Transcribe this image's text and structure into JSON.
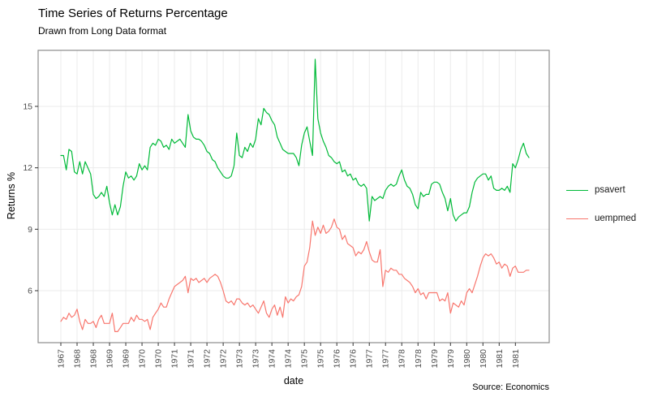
{
  "header": {
    "title": "Time Series of Returns Percentage",
    "subtitle": "Drawn from Long Data format"
  },
  "caption": "Source: Economics",
  "axes": {
    "x_title": "date",
    "y_title": "Returns %",
    "y_ticks": [
      6,
      9,
      12,
      15
    ]
  },
  "legend": {
    "items": [
      {
        "label": "psavert",
        "color": "#00BA38"
      },
      {
        "label": "uempmed",
        "color": "#F8766D"
      }
    ]
  },
  "colors": {
    "grid": "#ebebeb",
    "panel_border": "#8c8c8c",
    "tick_mark": "#333333",
    "tick_text": "#4d4d4d",
    "panel_bg": "#ffffff"
  },
  "chart_data": {
    "type": "line",
    "title": "Time Series of Returns Percentage",
    "subtitle": "Drawn from Long Data format",
    "xlabel": "date",
    "ylabel": "Returns %",
    "x_start": "1967-07",
    "x_end": "1981-12",
    "interval": "monthly",
    "ylim": [
      3.5,
      17.8
    ],
    "y_ticks": [
      6,
      9,
      12,
      15
    ],
    "x_tick_every_months": 6,
    "x_tick_labels": [
      "1967",
      "1968",
      "1968",
      "1969",
      "1969",
      "1970",
      "1970",
      "1971",
      "1971",
      "1972",
      "1972",
      "1973",
      "1973",
      "1974",
      "1974",
      "1975",
      "1975",
      "1976",
      "1976",
      "1977",
      "1977",
      "1978",
      "1978",
      "1979",
      "1979",
      "1980",
      "1980",
      "1981",
      "1981"
    ],
    "grid": "major-only",
    "legend_position": "right",
    "series": [
      {
        "name": "psavert",
        "color": "#00BA38",
        "values": [
          12.6,
          12.6,
          11.9,
          12.9,
          12.8,
          11.8,
          11.7,
          12.3,
          11.7,
          12.3,
          12.0,
          11.7,
          10.7,
          10.5,
          10.6,
          10.8,
          10.6,
          11.1,
          10.3,
          9.7,
          10.2,
          9.7,
          10.1,
          11.1,
          11.8,
          11.5,
          11.6,
          11.4,
          11.6,
          12.2,
          11.9,
          12.1,
          11.9,
          13.0,
          13.2,
          13.1,
          13.4,
          13.3,
          13.0,
          13.1,
          12.9,
          13.4,
          13.2,
          13.3,
          13.4,
          13.2,
          13.0,
          14.6,
          13.8,
          13.5,
          13.4,
          13.4,
          13.3,
          13.1,
          12.8,
          12.7,
          12.4,
          12.3,
          12.0,
          11.8,
          11.6,
          11.5,
          11.5,
          11.6,
          12.1,
          13.7,
          12.6,
          12.5,
          13.0,
          12.8,
          13.2,
          13.0,
          13.4,
          14.4,
          14.1,
          14.9,
          14.7,
          14.6,
          14.3,
          14.1,
          13.5,
          13.2,
          12.9,
          12.8,
          12.7,
          12.7,
          12.7,
          12.5,
          12.1,
          13.1,
          13.7,
          14.0,
          13.3,
          12.6,
          17.3,
          14.4,
          13.7,
          13.3,
          13.0,
          12.6,
          12.5,
          12.3,
          12.2,
          12.3,
          11.8,
          11.9,
          11.6,
          11.7,
          11.4,
          11.5,
          11.2,
          11.1,
          11.2,
          11.0,
          9.4,
          10.6,
          10.4,
          10.5,
          10.6,
          10.5,
          10.9,
          11.1,
          11.2,
          11.1,
          11.2,
          11.6,
          11.9,
          11.4,
          11.1,
          11.0,
          10.7,
          10.2,
          10.0,
          10.8,
          10.6,
          10.7,
          10.7,
          11.2,
          11.3,
          11.3,
          11.2,
          10.8,
          10.5,
          9.9,
          10.5,
          9.7,
          9.4,
          9.6,
          9.7,
          9.8,
          9.8,
          10.1,
          10.8,
          11.3,
          11.5,
          11.6,
          11.7,
          11.7,
          11.4,
          11.6,
          11.0,
          10.9,
          10.9,
          11.0,
          10.9,
          11.1,
          10.8,
          12.2,
          12.0,
          12.4,
          12.9,
          13.2,
          12.7,
          12.5
        ]
      },
      {
        "name": "uempmed",
        "color": "#F8766D",
        "values": [
          4.5,
          4.7,
          4.6,
          4.9,
          4.7,
          4.8,
          5.1,
          4.5,
          4.1,
          4.6,
          4.4,
          4.4,
          4.5,
          4.2,
          4.6,
          4.8,
          4.4,
          4.4,
          4.4,
          4.9,
          4.0,
          4.0,
          4.2,
          4.4,
          4.4,
          4.4,
          4.7,
          4.5,
          4.8,
          4.6,
          4.6,
          4.5,
          4.6,
          4.1,
          4.7,
          4.9,
          5.1,
          5.4,
          5.2,
          5.2,
          5.6,
          5.9,
          6.2,
          6.3,
          6.4,
          6.5,
          6.7,
          5.9,
          6.6,
          6.5,
          6.6,
          6.4,
          6.5,
          6.6,
          6.4,
          6.6,
          6.7,
          6.8,
          6.7,
          6.4,
          6.0,
          5.5,
          5.4,
          5.5,
          5.3,
          5.6,
          5.6,
          5.4,
          5.3,
          5.4,
          5.2,
          5.3,
          5.1,
          4.9,
          5.2,
          5.5,
          4.9,
          4.7,
          5.1,
          5.3,
          4.8,
          5.2,
          4.7,
          5.7,
          5.4,
          5.6,
          5.5,
          5.7,
          5.8,
          6.2,
          7.2,
          7.4,
          8.1,
          9.4,
          8.7,
          9.1,
          8.8,
          9.2,
          8.8,
          8.9,
          9.1,
          9.5,
          9.1,
          9.0,
          8.5,
          8.7,
          8.3,
          8.2,
          8.1,
          7.7,
          7.9,
          7.8,
          8.0,
          8.4,
          7.9,
          7.5,
          7.4,
          7.4,
          8.0,
          6.2,
          7.0,
          6.9,
          7.1,
          7.0,
          7.0,
          6.8,
          6.8,
          6.6,
          6.5,
          6.4,
          6.2,
          5.9,
          6.1,
          5.8,
          5.9,
          5.6,
          5.9,
          5.9,
          5.9,
          5.9,
          5.5,
          5.6,
          5.5,
          5.9,
          4.9,
          5.4,
          5.3,
          5.2,
          5.5,
          5.3,
          5.9,
          6.1,
          5.9,
          6.3,
          6.7,
          7.2,
          7.6,
          7.8,
          7.7,
          7.8,
          7.6,
          7.3,
          7.4,
          7.1,
          7.3,
          7.2,
          6.7,
          7.1,
          7.2,
          6.9,
          6.9,
          6.9,
          7.0,
          7.0
        ]
      }
    ]
  }
}
